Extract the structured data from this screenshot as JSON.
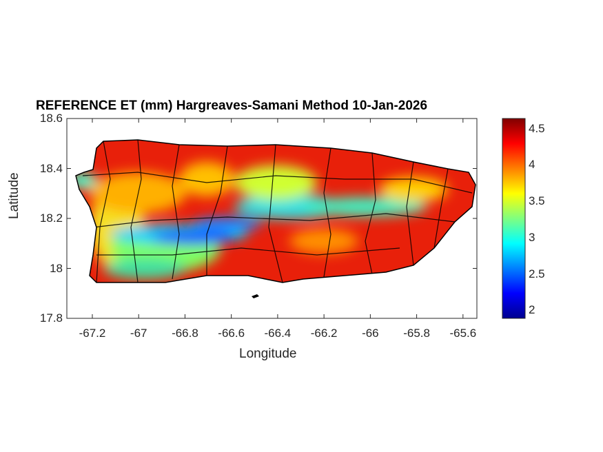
{
  "chart_data": {
    "type": "heatmap",
    "title": "REFERENCE ET (mm) Hargreaves-Samani Method  10-Jan-2026",
    "xlabel": "Longitude",
    "ylabel": "Latitude",
    "xlim": [
      -67.31,
      -65.54
    ],
    "ylim": [
      17.8,
      18.6
    ],
    "xticks": [
      "-67.2",
      "-67",
      "-66.8",
      "-66.6",
      "-66.4",
      "-66.2",
      "-66",
      "-65.8",
      "-65.6"
    ],
    "xtick_values": [
      -67.2,
      -67,
      -66.8,
      -66.6,
      -66.4,
      -66.2,
      -66,
      -65.8,
      -65.6
    ],
    "yticks": [
      "18.6",
      "18.4",
      "18.2",
      "18",
      "17.8"
    ],
    "ytick_values": [
      18.6,
      18.4,
      18.2,
      18,
      17.8
    ],
    "colormap": "jet",
    "colorbar": {
      "range": [
        1.89,
        4.64
      ],
      "ticks": [
        "4.5",
        "4",
        "3.5",
        "3",
        "2.5",
        "2"
      ],
      "tick_values": [
        4.5,
        4,
        3.5,
        3,
        2.5,
        2
      ]
    },
    "grid": false
  }
}
